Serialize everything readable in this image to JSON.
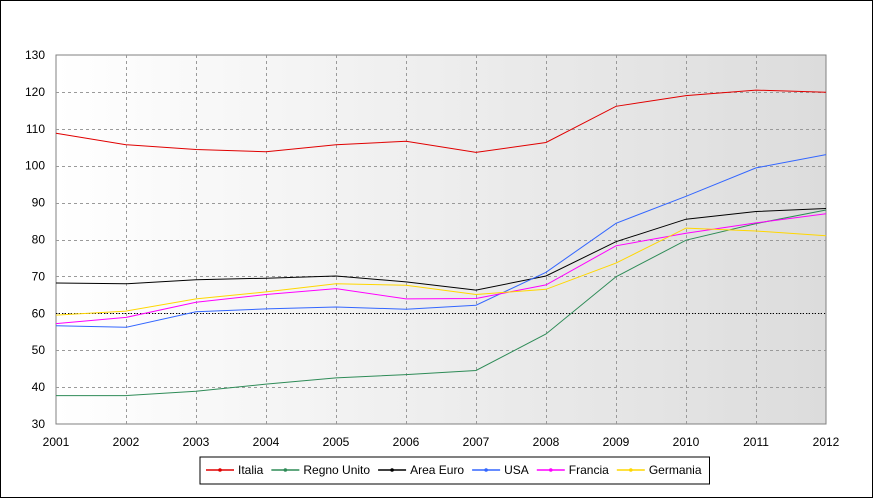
{
  "chart_data": {
    "type": "line",
    "x": [
      "2001",
      "2002",
      "2003",
      "2004",
      "2005",
      "2006",
      "2007",
      "2008",
      "2009",
      "2010",
      "2011",
      "2012"
    ],
    "yticks": [
      30,
      40,
      50,
      60,
      70,
      80,
      90,
      100,
      110,
      120,
      130
    ],
    "ylim": [
      30,
      130
    ],
    "grid": true,
    "reference_line": 60,
    "legend_position": "bottom-center",
    "series": [
      {
        "name": "Italia",
        "color": "#e00000",
        "values": [
          108.8,
          105.7,
          104.4,
          103.8,
          105.7,
          106.6,
          103.6,
          106.3,
          116.1,
          119.0,
          120.5,
          119.9
        ]
      },
      {
        "name": "Regno Unito",
        "color": "#2e8b57",
        "values": [
          37.7,
          37.7,
          38.9,
          40.8,
          42.5,
          43.4,
          44.5,
          54.4,
          69.9,
          79.8,
          84.3,
          88.0
        ]
      },
      {
        "name": "Area Euro",
        "color": "#000000",
        "values": [
          68.2,
          68.0,
          69.1,
          69.5,
          70.1,
          68.5,
          66.3,
          70.1,
          79.4,
          85.5,
          87.6,
          88.4
        ]
      },
      {
        "name": "USA",
        "color": "#3366ff",
        "values": [
          56.6,
          56.2,
          60.4,
          61.2,
          61.7,
          61.1,
          62.2,
          71.1,
          84.4,
          91.7,
          99.4,
          103.0
        ]
      },
      {
        "name": "Francia",
        "color": "#ff00ff",
        "values": [
          57.2,
          58.9,
          63.0,
          65.1,
          66.7,
          63.9,
          64.0,
          67.7,
          78.3,
          81.7,
          84.5,
          87.0
        ]
      },
      {
        "name": "Germania",
        "color": "#ffd700",
        "values": [
          59.5,
          60.6,
          63.9,
          65.8,
          68.0,
          67.6,
          65.1,
          66.5,
          73.6,
          83.1,
          82.3,
          81.0
        ]
      }
    ]
  }
}
